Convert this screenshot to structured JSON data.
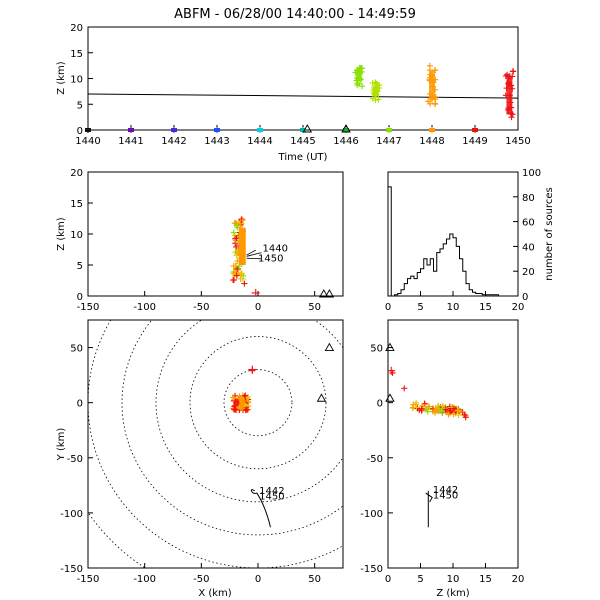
{
  "title": "ABFM - 06/28/00 14:40:00 - 14:49:59",
  "colors": {
    "purple": "#6a0dad",
    "violet": "#4b2bd6",
    "blue": "#1f4fff",
    "cyan": "#00d0e0",
    "teal": "#00b5a0",
    "green": "#22aa33",
    "lime": "#88e000",
    "yellow": "#e0d000",
    "orange": "#ff9900",
    "red": "#ee1111"
  },
  "chart_data": [
    {
      "id": "time-height",
      "type": "scatter",
      "xlabel": "Time (UT)",
      "ylabel": "Z (km)",
      "xlim": [
        1440,
        1450
      ],
      "ylim": [
        0,
        20
      ],
      "xticks": [
        "1440",
        "1441",
        "1442",
        "1443",
        "1444",
        "1445",
        "1446",
        "1447",
        "1448",
        "1449",
        "1450"
      ],
      "yticks": [
        "0",
        "5",
        "10",
        "15",
        "20"
      ],
      "line": {
        "x": [
          1440,
          1450
        ],
        "y": [
          7.0,
          6.2
        ]
      },
      "ground_markers": [
        {
          "x": 1440.0,
          "color": "#111111"
        },
        {
          "x": 1441.0,
          "color": "#6a0dad"
        },
        {
          "x": 1442.0,
          "color": "#4b2bd6"
        },
        {
          "x": 1443.0,
          "color": "#1f4fff"
        },
        {
          "x": 1444.0,
          "color": "#00d0e0"
        },
        {
          "x": 1445.0,
          "color": "#00b5a0"
        },
        {
          "x": 1446.0,
          "color": "#22aa33"
        },
        {
          "x": 1447.0,
          "color": "#88e000"
        },
        {
          "x": 1448.0,
          "color": "#ff9900"
        },
        {
          "x": 1449.0,
          "color": "#ee1111"
        }
      ],
      "stations": [
        {
          "x": 1445.1,
          "y": -0.3
        },
        {
          "x": 1446.0,
          "y": -0.3
        }
      ],
      "clusters": [
        {
          "x": 1446.3,
          "ymin": 8.5,
          "ymax": 12.3,
          "color": "#88e000"
        },
        {
          "x": 1446.7,
          "ymin": 5.5,
          "ymax": 9.5,
          "color": "#b0e000"
        },
        {
          "x": 1448.0,
          "ymin": 5.0,
          "ymax": 12.5,
          "color": "#ff9900"
        },
        {
          "x": 1449.8,
          "ymin": 2.0,
          "ymax": 11.5,
          "color": "#ee1111"
        }
      ]
    },
    {
      "id": "xz",
      "type": "scatter",
      "ylabel": "Z (km)",
      "xlim": [
        -150,
        75
      ],
      "ylim": [
        0,
        20
      ],
      "xticks": [
        "-150",
        "-100",
        "-50",
        "0",
        "50"
      ],
      "yticks": [
        "0",
        "5",
        "10",
        "15",
        "20"
      ],
      "annotations": [
        "1440",
        "1450"
      ]
    },
    {
      "id": "histogram",
      "type": "bar",
      "ylabel": "number of sources",
      "xlim": [
        0,
        20
      ],
      "ylim": [
        0,
        100
      ],
      "xticks": [
        "0",
        "5",
        "10",
        "15",
        "20"
      ],
      "yticks": [
        "0",
        "20",
        "40",
        "60",
        "80",
        "100"
      ],
      "bin_width": 0.5,
      "values": [
        88,
        0,
        1,
        2,
        5,
        10,
        14,
        16,
        14,
        19,
        22,
        30,
        25,
        30,
        20,
        35,
        38,
        42,
        46,
        50,
        47,
        40,
        30,
        20,
        10,
        5,
        3,
        2,
        2,
        1,
        1,
        1,
        1,
        1,
        0,
        0,
        0,
        0,
        0,
        0
      ]
    },
    {
      "id": "plan-view",
      "type": "scatter",
      "xlabel": "X (km)",
      "ylabel": "Y (km)",
      "xlim": [
        -150,
        75
      ],
      "ylim": [
        -150,
        75
      ],
      "xticks": [
        "-150",
        "-100",
        "-50",
        "0",
        "50"
      ],
      "yticks": [
        "-150",
        "-100",
        "-50",
        "0",
        "50"
      ],
      "range_rings_km": [
        30,
        60,
        90,
        120,
        150,
        180
      ],
      "annotations": [
        "1442",
        "1450"
      ]
    },
    {
      "id": "yz",
      "type": "scatter",
      "xlabel": "Z (km)",
      "xlim": [
        0,
        20
      ],
      "ylim": [
        -150,
        75
      ],
      "xticks": [
        "0",
        "5",
        "10",
        "15",
        "20"
      ],
      "yticks": [
        "-150",
        "-100",
        "-50",
        "0",
        "50"
      ],
      "annotations": [
        "1442",
        "1450"
      ]
    }
  ]
}
